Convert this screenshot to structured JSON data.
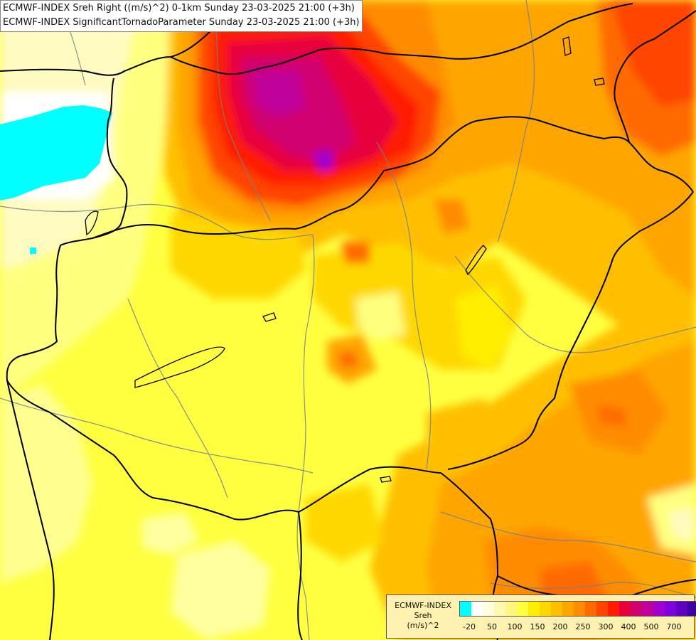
{
  "titles": {
    "line1": "ECMWF-INDEX Sreh Right ((m/s)^2) 0-1km Sunday 23-03-2025 21:00 (+3h)",
    "line2": "ECMWF-INDEX SignificantTornadoParameter Sunday 23-03-2025 21:00 (+3h)"
  },
  "legend": {
    "title_line1": "ECMWF-INDEX",
    "title_line2": "Sreh",
    "title_line3": "(m/s)^2",
    "colors": [
      "#00ffff",
      "#ffffff",
      "#fffde0",
      "#fff8b0",
      "#fff580",
      "#ffff40",
      "#ffee00",
      "#ffd700",
      "#ffbf00",
      "#ffa500",
      "#ff8c00",
      "#ff6a00",
      "#ff4500",
      "#ff1a00",
      "#e8003c",
      "#d0006e",
      "#c0009a",
      "#a000d0",
      "#8000e0",
      "#6000c0",
      "#4000a0",
      "#200080"
    ],
    "labels": [
      "-20",
      "50",
      "100",
      "150",
      "200",
      "250",
      "300",
      "400",
      "500",
      "700"
    ]
  },
  "colors": {
    "border": "#000000",
    "river": "#708090"
  }
}
